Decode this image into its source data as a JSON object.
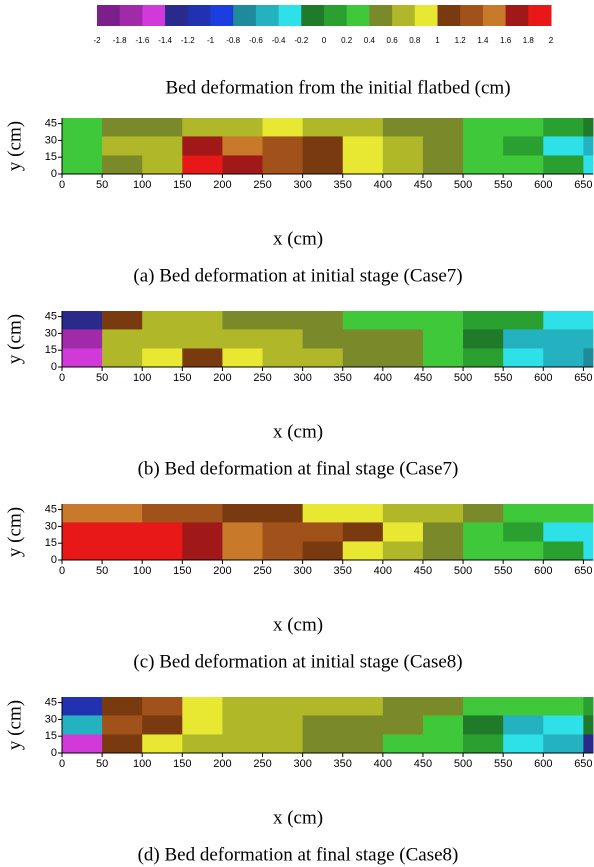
{
  "chart_data": [
    {
      "type": "colorbar",
      "title": "Bed deformation from the initial flatbed (cm)",
      "lim": [
        -2,
        2
      ],
      "ticks": [
        -2,
        -1.8,
        -1.6,
        -1.4,
        -1.2,
        -1,
        -0.8,
        -0.6,
        -0.4,
        -0.2,
        0,
        0.2,
        0.4,
        0.6,
        0.8,
        1,
        1.2,
        1.4,
        1.6,
        1.8,
        2
      ],
      "colors": [
        "#7b1f8a",
        "#a02aa8",
        "#d13ad8",
        "#2a2a8c",
        "#2231b0",
        "#1a3ee0",
        "#1f8a9a",
        "#25b2c0",
        "#2ee0e8",
        "#1f7a2a",
        "#2aa030",
        "#3fc83a",
        "#7a8a2a",
        "#b0b82a",
        "#e8e832",
        "#7a3a10",
        "#a0521a",
        "#c87a2a",
        "#a01818",
        "#e81818"
      ]
    },
    {
      "type": "heatmap",
      "caption": "(a) Bed deformation at initial stage (Case7)",
      "xlabel": "x (cm)",
      "ylabel": "y (cm)",
      "xlim": [
        0,
        662
      ],
      "ylim": [
        0,
        50
      ],
      "xticks": [
        0,
        50,
        100,
        150,
        200,
        250,
        300,
        350,
        400,
        450,
        500,
        550,
        600,
        650
      ],
      "yticks": [
        0,
        15,
        30,
        45
      ],
      "xbins": [
        0,
        50,
        100,
        150,
        200,
        250,
        300,
        350,
        400,
        450,
        500,
        550,
        600,
        650,
        662
      ],
      "ybins": [
        0,
        17,
        34,
        50
      ],
      "values": [
        [
          0.3,
          0.5,
          0.6,
          1.8,
          1.6,
          1.2,
          1.1,
          0.8,
          0.7,
          0.4,
          0.3,
          0.2,
          0.0,
          -0.3
        ],
        [
          0.3,
          0.6,
          0.7,
          1.6,
          1.4,
          1.2,
          1.0,
          0.8,
          0.7,
          0.4,
          0.2,
          0.0,
          -0.4,
          -0.6
        ],
        [
          0.3,
          0.4,
          0.5,
          0.6,
          0.7,
          0.8,
          0.7,
          0.6,
          0.5,
          0.4,
          0.3,
          0.2,
          0.1,
          -0.2
        ]
      ]
    },
    {
      "type": "heatmap",
      "caption": "(b) Bed deformation at final stage (Case7)",
      "xlabel": "x (cm)",
      "ylabel": "y (cm)",
      "xlim": [
        0,
        662
      ],
      "ylim": [
        0,
        50
      ],
      "xticks": [
        0,
        50,
        100,
        150,
        200,
        250,
        300,
        350,
        400,
        450,
        500,
        550,
        600,
        650
      ],
      "yticks": [
        0,
        15,
        30,
        45
      ],
      "xbins": [
        0,
        50,
        100,
        150,
        200,
        250,
        300,
        350,
        400,
        450,
        500,
        550,
        600,
        650,
        662
      ],
      "ybins": [
        0,
        17,
        34,
        50
      ],
      "values": [
        [
          -1.6,
          0.7,
          0.8,
          1.1,
          0.9,
          0.7,
          0.6,
          0.5,
          0.4,
          0.3,
          0.0,
          -0.4,
          -0.6,
          -0.7
        ],
        [
          -1.8,
          0.6,
          0.7,
          0.7,
          0.6,
          0.6,
          0.5,
          0.5,
          0.4,
          0.2,
          -0.2,
          -0.5,
          -0.6,
          -0.6
        ],
        [
          -1.4,
          1.1,
          0.7,
          0.6,
          0.5,
          0.5,
          0.4,
          0.3,
          0.3,
          0.2,
          0.1,
          0.0,
          -0.3,
          -0.3
        ]
      ]
    },
    {
      "type": "heatmap",
      "caption": "(c) Bed deformation at initial stage (Case8)",
      "xlabel": "x (cm)",
      "ylabel": "y (cm)",
      "xlim": [
        0,
        662
      ],
      "ylim": [
        0,
        50
      ],
      "xticks": [
        0,
        50,
        100,
        150,
        200,
        250,
        300,
        350,
        400,
        450,
        500,
        550,
        600,
        650
      ],
      "yticks": [
        0,
        15,
        30,
        45
      ],
      "xbins": [
        0,
        50,
        100,
        150,
        200,
        250,
        300,
        350,
        400,
        450,
        500,
        550,
        600,
        650,
        662
      ],
      "ybins": [
        0,
        17,
        34,
        50
      ],
      "values": [
        [
          1.8,
          1.8,
          1.8,
          1.6,
          1.4,
          1.2,
          1.1,
          0.8,
          0.7,
          0.4,
          0.3,
          0.2,
          0.0,
          -0.4
        ],
        [
          1.9,
          1.9,
          1.8,
          1.7,
          1.5,
          1.2,
          1.2,
          1.0,
          0.8,
          0.5,
          0.3,
          0.0,
          -0.4,
          -0.3
        ],
        [
          1.4,
          1.4,
          1.3,
          1.2,
          1.1,
          1.0,
          0.9,
          0.8,
          0.7,
          0.6,
          0.4,
          0.3,
          0.2,
          0.3
        ]
      ]
    },
    {
      "type": "heatmap",
      "caption": "(d) Bed deformation at final stage (Case8)",
      "xlabel": "x (cm)",
      "ylabel": "y (cm)",
      "xlim": [
        0,
        662
      ],
      "ylim": [
        0,
        50
      ],
      "xticks": [
        0,
        50,
        100,
        150,
        200,
        250,
        300,
        350,
        400,
        450,
        500,
        550,
        600,
        650
      ],
      "yticks": [
        0,
        15,
        30,
        45
      ],
      "xbins": [
        0,
        50,
        100,
        150,
        200,
        250,
        300,
        350,
        400,
        450,
        500,
        550,
        600,
        650,
        662
      ],
      "ybins": [
        0,
        17,
        34,
        50
      ],
      "values": [
        [
          -1.6,
          1.1,
          0.9,
          0.7,
          0.6,
          0.6,
          0.5,
          0.4,
          0.3,
          0.2,
          0.0,
          -0.4,
          -0.6,
          -1.4
        ],
        [
          -0.5,
          1.2,
          1.1,
          0.8,
          0.7,
          0.6,
          0.5,
          0.5,
          0.4,
          0.2,
          -0.2,
          -0.6,
          -0.4,
          -0.2
        ],
        [
          -1.2,
          1.1,
          1.2,
          0.8,
          0.7,
          0.7,
          0.6,
          0.6,
          0.5,
          0.4,
          0.3,
          0.3,
          0.2,
          0.1
        ]
      ]
    }
  ]
}
